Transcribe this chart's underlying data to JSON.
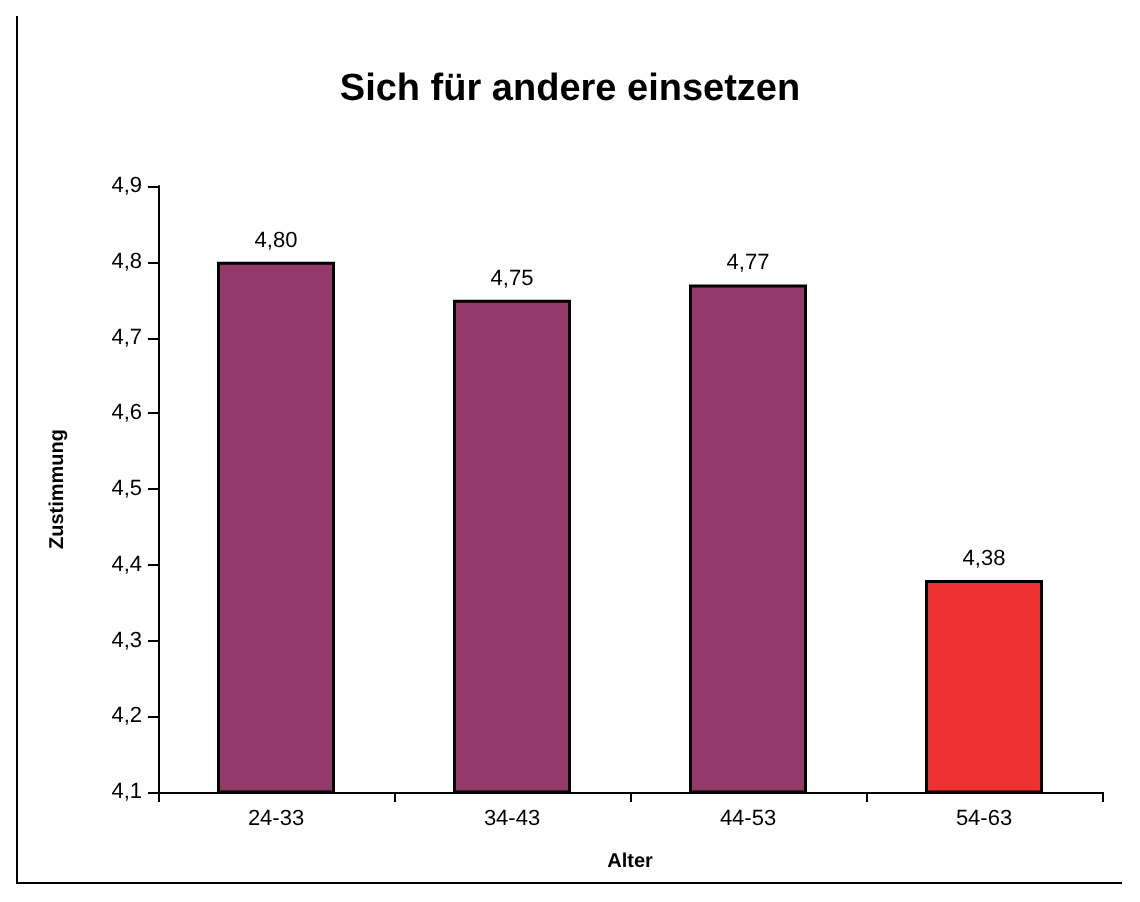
{
  "chart_data": {
    "type": "bar",
    "title": "Sich für andere einsetzen",
    "xlabel": "Alter",
    "ylabel": "Zustimmung",
    "categories": [
      "24-33",
      "34-43",
      "44-53",
      "54-63"
    ],
    "values": [
      4.8,
      4.75,
      4.77,
      4.38
    ],
    "colors": [
      "#943a6b",
      "#943a6b",
      "#943a6b",
      "#ee3030"
    ],
    "value_labels": [
      "4,80",
      "4,75",
      "4,77",
      "4,38"
    ],
    "ylim": [
      4.1,
      4.9
    ],
    "yticks": [
      {
        "value": 4.1,
        "label": "4,1"
      },
      {
        "value": 4.2,
        "label": "4,2"
      },
      {
        "value": 4.3,
        "label": "4,3"
      },
      {
        "value": 4.4,
        "label": "4,4"
      },
      {
        "value": 4.5,
        "label": "4,5"
      },
      {
        "value": 4.6,
        "label": "4,6"
      },
      {
        "value": 4.7,
        "label": "4,7"
      },
      {
        "value": 4.8,
        "label": "4,8"
      },
      {
        "value": 4.9,
        "label": "4,9"
      }
    ],
    "grid": false
  }
}
